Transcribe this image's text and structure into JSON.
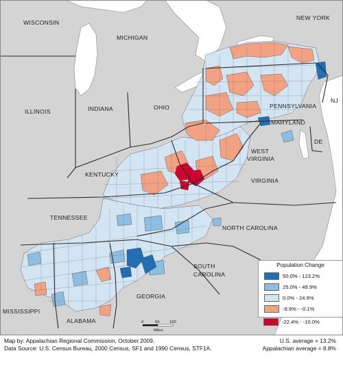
{
  "map": {
    "state_labels": {
      "wisconsin": "WISCONSIN",
      "michigan": "MICHIGAN",
      "new_york": "NEW YORK",
      "illinois": "ILLINOIS",
      "indiana": "INDIANA",
      "ohio": "OHIO",
      "pennsylvania": "PENNSYLVANIA",
      "nj": "NJ",
      "maryland": "MARYLAND",
      "de": "DE",
      "kentucky": "KENTUCKY",
      "west_virginia_1": "WEST",
      "west_virginia_2": "VIRGINIA",
      "virginia": "VIRGINIA",
      "tennessee": "TENNESSEE",
      "north_carolina": "NORTH CAROLINA",
      "south_carolina_1": "SOUTH",
      "south_carolina_2": "CAROLINA",
      "georgia": "GEORGIA",
      "mississippi": "MISSISSIPPI",
      "alabama": "ALABAMA"
    },
    "scale": {
      "ticks": [
        "0",
        "50",
        "100"
      ],
      "unit": "Miles"
    },
    "colors": {
      "outside": "#d4d4d4",
      "water": "#ffffff",
      "class_1": "#1f6fb5",
      "class_2": "#8dbde0",
      "class_3": "#d3e5f3",
      "class_4": "#f2a283",
      "class_5": "#d2002c",
      "border": "#3a3a3a"
    }
  },
  "legend": {
    "title": "Population Change",
    "items": [
      {
        "label": "50.0% - 123.2%",
        "color": "#1f6fb5"
      },
      {
        "label": "25.0% - 49.9%",
        "color": "#8dbde0"
      },
      {
        "label": "0.0% - 24.9%",
        "color": "#d3e5f3"
      },
      {
        "label": "-9.9% - -0.1%",
        "color": "#f2a283"
      },
      {
        "label": "-22.4% - -10.0%",
        "color": "#d2002c"
      }
    ]
  },
  "footer": {
    "credit_line": "Map by: Appalachian Regional Commission, October 2009.",
    "source_line": "Data Source: U.S. Census Bureau, 2000 Census, SF1 and 1990 Census, STF1A.",
    "us_average": "U.S. average = 13.2%",
    "appalachian_average": "Appalachian average = 8.8%"
  }
}
